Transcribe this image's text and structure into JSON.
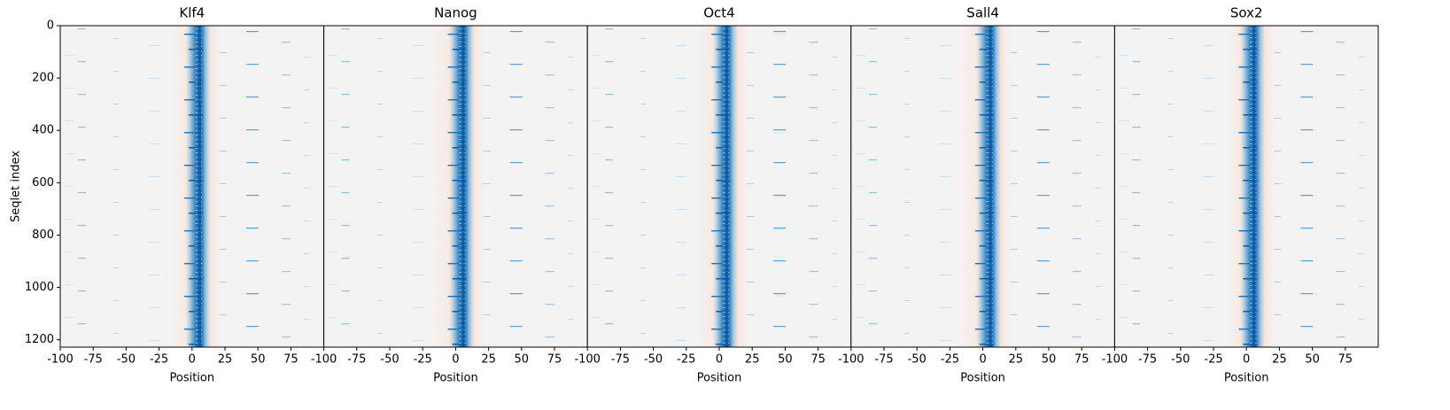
{
  "chart_data": [
    {
      "type": "heatmap",
      "title": "Klf4",
      "xlabel": "Position",
      "ylabel": "Seqlet index",
      "xlim": [
        -100,
        100
      ],
      "xticks": [
        -100,
        -75,
        -50,
        -25,
        0,
        25,
        50,
        75
      ],
      "ylim": [
        0,
        1228
      ],
      "yticks": [
        0,
        200,
        400,
        600,
        800,
        1000,
        1200
      ]
    },
    {
      "type": "heatmap",
      "title": "Nanog",
      "xlabel": "Position",
      "xlim": [
        -100,
        100
      ],
      "xticks": [
        -100,
        -75,
        -50,
        -25,
        0,
        25,
        50,
        75
      ]
    },
    {
      "type": "heatmap",
      "title": "Oct4",
      "xlabel": "Position",
      "xlim": [
        -100,
        100
      ],
      "xticks": [
        -100,
        -75,
        -50,
        -25,
        0,
        25,
        50,
        75
      ]
    },
    {
      "type": "heatmap",
      "title": "Sall4",
      "xlabel": "Position",
      "xlim": [
        -100,
        100
      ],
      "xticks": [
        -100,
        -75,
        -50,
        -25,
        0,
        25,
        50,
        75
      ]
    },
    {
      "type": "heatmap",
      "title": "Sox2",
      "xlabel": "Position",
      "xlim": [
        -100,
        100
      ],
      "xticks": [
        -100,
        -75,
        -50,
        -25,
        0,
        25,
        50,
        75
      ]
    }
  ]
}
